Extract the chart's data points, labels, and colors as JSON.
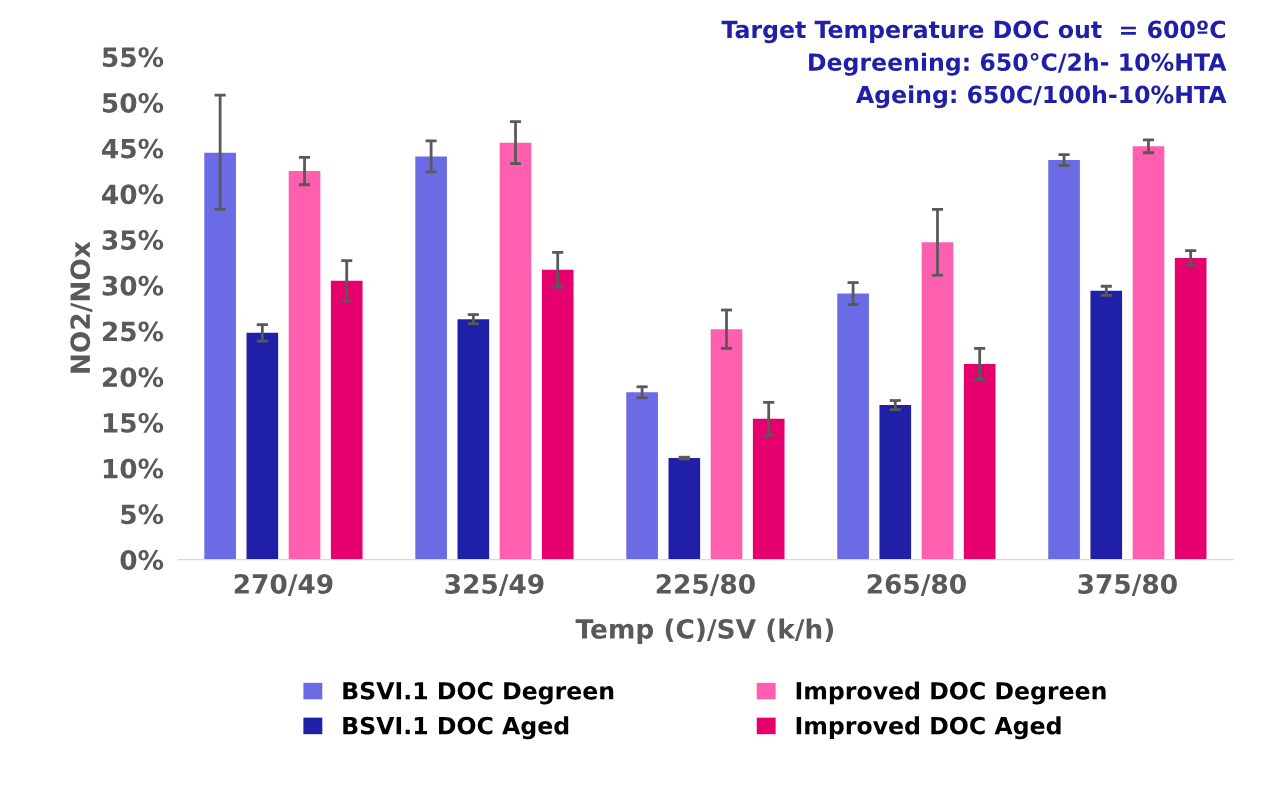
{
  "chart_data": {
    "type": "bar",
    "xlabel": "Temp (C)/SV (k/h)",
    "ylabel": "NO2/NOx",
    "annotations": [
      "Target Temperature DOC out  = 600ºC",
      "Degreening: 650°C/2h- 10%HTA",
      "Ageing: 650C/100h-10%HTA"
    ],
    "categories": [
      "270/49",
      "325/49",
      "225/80",
      "265/80",
      "375/80"
    ],
    "series": [
      {
        "name": "BSVI.1 DOC Degreen",
        "color": "#6b6be6",
        "values": [
          44.5,
          44.1,
          18.3,
          29.1,
          43.7
        ],
        "errors": [
          [
            38.3,
            50.8
          ],
          1.7,
          0.6,
          1.2,
          0.6
        ]
      },
      {
        "name": "BSVI.1 DOC Aged",
        "color": "#1f1fa8",
        "values": [
          24.8,
          26.3,
          11.1,
          16.9,
          29.4
        ],
        "errors": [
          0.9,
          0.5,
          0.1,
          0.5,
          0.5
        ]
      },
      {
        "name": "Improved DOC Degreen",
        "color": "#ff5fae",
        "values": [
          42.5,
          45.6,
          25.2,
          34.7,
          45.2
        ],
        "errors": [
          1.5,
          2.3,
          2.1,
          3.6,
          0.7
        ]
      },
      {
        "name": "Improved DOC Aged",
        "color": "#e5006e",
        "values": [
          30.5,
          31.7,
          15.4,
          21.4,
          33.0
        ],
        "errors": [
          2.2,
          1.9,
          1.8,
          1.7,
          0.8
        ]
      }
    ],
    "ylim": [
      0,
      55
    ],
    "yticks": [
      {
        "value": 0,
        "label": "0%"
      },
      {
        "value": 5,
        "label": "5%"
      },
      {
        "value": 10,
        "label": "10%"
      },
      {
        "value": 15,
        "label": "15%"
      },
      {
        "value": 20,
        "label": "20%"
      },
      {
        "value": 25,
        "label": "25%"
      },
      {
        "value": 30,
        "label": "30%"
      },
      {
        "value": 35,
        "label": "35%"
      },
      {
        "value": 40,
        "label": "40%"
      },
      {
        "value": 45,
        "label": "45%"
      },
      {
        "value": 50,
        "label": "50%"
      },
      {
        "value": 55,
        "label": "55%"
      }
    ],
    "grid": false,
    "legend": "bottom"
  }
}
